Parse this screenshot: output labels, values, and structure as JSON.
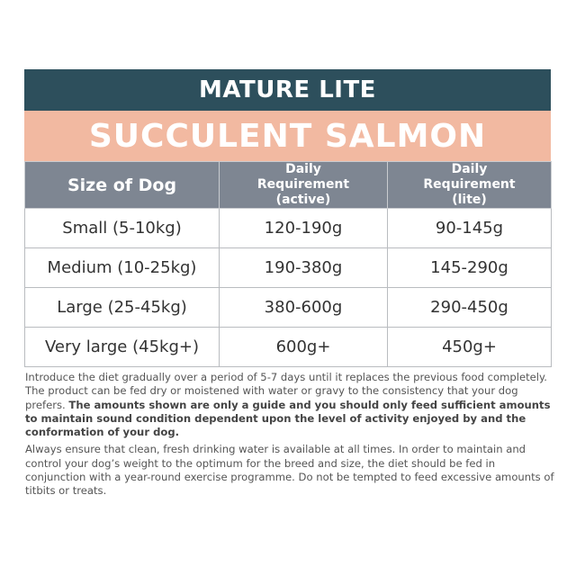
{
  "header": {
    "title": "MATURE LITE",
    "subtitle": "SUCCULENT SALMON"
  },
  "table": {
    "columns": [
      "Size of Dog",
      "Daily Requirement (active)",
      "Daily Requirement (lite)"
    ],
    "rows": [
      [
        "Small (5-10kg)",
        "120-190g",
        "90-145g"
      ],
      [
        "Medium (10-25kg)",
        "190-380g",
        "145-290g"
      ],
      [
        "Large (25-45kg)",
        "380-600g",
        "290-450g"
      ],
      [
        "Very large (45kg+)",
        "600g+",
        "450g+"
      ]
    ]
  },
  "notes": [
    {
      "text": "Introduce the diet gradually over a period of 5-7 days until it replaces the previous food completely. The product can be fed dry or moistened with water or gravy to the consistency that your dog prefers.",
      "bold": "The amounts shown are only a guide and you should only feed sufficient amounts to maintain sound condition dependent upon the level of activity enjoyed by and the conformation of your dog."
    },
    {
      "text": "Always ensure that clean, fresh drinking water is available at all times. In order to maintain and control your dog’s weight to the optimum for the breed and size, the diet should be fed in conjunction with a year-round exercise programme. Do not be tempted to feed excessive amounts of titbits or treats."
    }
  ]
}
